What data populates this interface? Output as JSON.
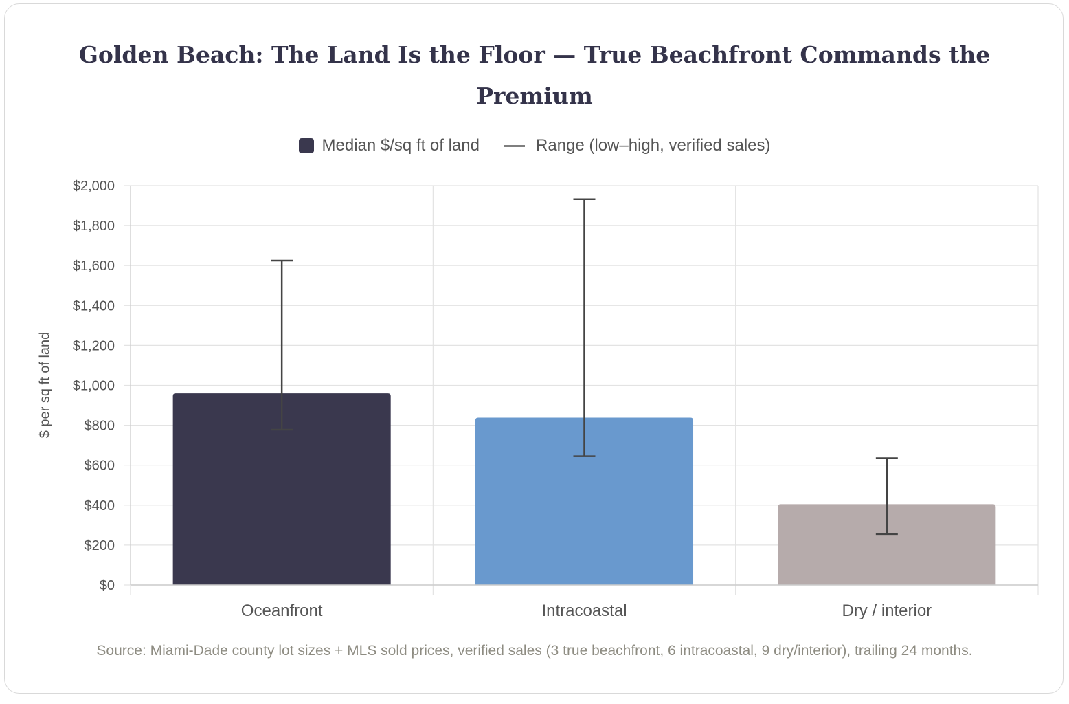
{
  "chart_data": {
    "type": "bar",
    "title": "Golden Beach: The Land Is the Floor — True Beachfront Commands the Premium",
    "categories": [
      "Oceanfront",
      "Intracoastal",
      "Dry / interior"
    ],
    "series": [
      {
        "name": "Median $/sq ft of land",
        "values": [
          960,
          838,
          405
        ],
        "colors": [
          "#3a384e",
          "#6999ce",
          "#b6abab"
        ]
      }
    ],
    "range_series": {
      "name": "Range (low–high, verified sales)",
      "low": [
        778,
        645,
        255
      ],
      "high": [
        1625,
        1932,
        635
      ],
      "color": "#444444"
    },
    "ylabel": "$ per sq ft of land",
    "xlabel": "",
    "ylim": [
      0,
      2000
    ],
    "yticks": [
      0,
      200,
      400,
      600,
      800,
      1000,
      1200,
      1400,
      1600,
      1800,
      2000
    ],
    "ytick_labels": [
      "$0",
      "$200",
      "$400",
      "$600",
      "$800",
      "$1,000",
      "$1,200",
      "$1,400",
      "$1,600",
      "$1,800",
      "$2,000"
    ],
    "grid": true,
    "legend_position": "top-center",
    "legend": {
      "median_label": "Median $/sq ft of land",
      "range_label": "Range (low–high, verified sales)",
      "median_color": "#3a384e",
      "range_color": "#7f7f7f"
    },
    "source": "Source: Miami-Dade county lot sizes + MLS sold prices, verified sales (3 true beachfront, 6 intracoastal, 9 dry/interior), trailing 24 months."
  }
}
